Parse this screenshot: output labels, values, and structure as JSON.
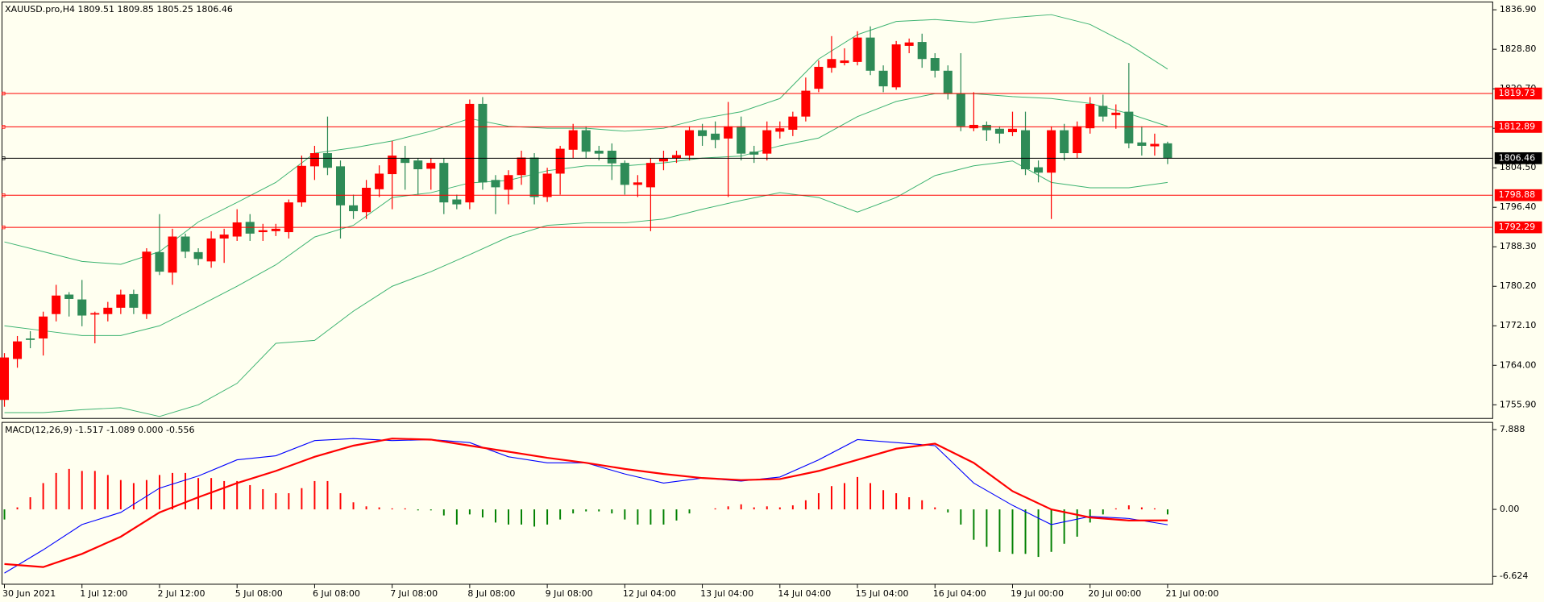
{
  "chart_data": [
    {
      "type": "candlestick",
      "title": "XAUUSD.pro,H4  1809.51 1809.85 1805.25 1806.46",
      "categories": [
        "30 Jun 2021",
        null,
        null,
        null,
        null,
        null,
        "1 Jul 12:00",
        null,
        null,
        null,
        null,
        null,
        "2 Jul 12:00",
        null,
        null,
        null,
        null,
        null,
        "5 Jul 08:00",
        null,
        null,
        null,
        null,
        null,
        "6 Jul 08:00",
        null,
        null,
        null,
        null,
        null,
        "7 Jul 08:00",
        null,
        null,
        null,
        null,
        null,
        "8 Jul 08:00",
        null,
        null,
        null,
        null,
        null,
        "9 Jul 08:00",
        null,
        null,
        null,
        null,
        null,
        "12 Jul 04:00",
        null,
        null,
        null,
        null,
        null,
        "13 Jul 04:00",
        null,
        null,
        null,
        null,
        null,
        "14 Jul 04:00",
        null,
        null,
        null,
        null,
        null,
        "15 Jul 04:00",
        null,
        null,
        null,
        null,
        null,
        "16 Jul 04:00",
        null,
        null,
        null,
        null,
        null,
        "19 Jul 00:00",
        null,
        null,
        null,
        null,
        null,
        "20 Jul 00:00",
        null,
        null,
        null,
        null,
        null,
        "21 Jul 00:00"
      ],
      "open": [
        1756.9,
        1765.3,
        1769.5,
        1769.5,
        1774.5,
        1778.5,
        1777.5,
        1774.4,
        1774.5,
        1775.8,
        1778.6,
        1774.5,
        1787.2,
        1783,
        1790.4,
        1787.2,
        1785.3,
        1790,
        1790.4,
        1793.4,
        1791.3,
        1791.5,
        1791.3,
        1797.4,
        1804.8,
        1807.5,
        1804.8,
        1796.8,
        1795.4,
        1800.1,
        1803.2,
        1806.5,
        1806,
        1804.3,
        1805.5,
        1798,
        1797.4,
        1817.6,
        1802,
        1800,
        1803,
        1806.6,
        1798.5,
        1803.3,
        1808.2,
        1812.2,
        1808,
        1808,
        1805.5,
        1801,
        1800.5,
        1805.8,
        1806.5,
        1807,
        1812.2,
        1811.5,
        1810.5,
        1813,
        1807.8,
        1807.4,
        1811.9,
        1812.3,
        1815,
        1820.7,
        1825,
        1826,
        1826.2,
        1831.2,
        1824.4,
        1821,
        1829.5,
        1830.3,
        1827,
        1824.4,
        1819.7,
        1812.6,
        1813.3,
        1812.5,
        1811.8,
        1812.2,
        1804.6,
        1803.5,
        1812.2,
        1807.5,
        1812.6,
        1817.2,
        1815.3,
        1816,
        1809.7,
        1808.9,
        1809.51
      ],
      "high": [
        1766.5,
        1770,
        1771,
        1775,
        1780.5,
        1779,
        1781.5,
        1775,
        1777,
        1779.5,
        1779.5,
        1788,
        1795,
        1792,
        1791,
        1788,
        1791.5,
        1792,
        1796,
        1795,
        1793,
        1793,
        1798,
        1807,
        1809,
        1815,
        1806,
        1799,
        1802,
        1805,
        1810,
        1809,
        1806.5,
        1806.5,
        1806.5,
        1799,
        1818.5,
        1819,
        1803,
        1804,
        1808,
        1807.5,
        1804.5,
        1809,
        1813.5,
        1813,
        1809,
        1809.5,
        1806,
        1803,
        1806.5,
        1808,
        1808,
        1813,
        1813.5,
        1814,
        1818,
        1815,
        1809,
        1814,
        1814,
        1816,
        1823,
        1826.5,
        1831.5,
        1829,
        1832.5,
        1833.5,
        1825.5,
        1830.5,
        1831,
        1832,
        1828,
        1825.5,
        1828,
        1820,
        1814,
        1813,
        1816,
        1816,
        1806,
        1813,
        1813.5,
        1814,
        1819,
        1819.5,
        1817.5,
        1826,
        1813,
        1811.5,
        1809.85
      ],
      "low": [
        1755.5,
        1763.5,
        1767.5,
        1766,
        1773,
        1774,
        1772,
        1768.5,
        1773,
        1774.5,
        1774.5,
        1773.5,
        1782.5,
        1780.5,
        1786,
        1784.5,
        1784,
        1785,
        1789.5,
        1789.5,
        1789.5,
        1790.5,
        1790,
        1796.5,
        1802,
        1803,
        1790,
        1794,
        1794,
        1798.5,
        1796,
        1800,
        1799,
        1800,
        1795,
        1796,
        1796,
        1800,
        1795,
        1797,
        1801,
        1797,
        1797.5,
        1799,
        1806.5,
        1806.5,
        1806,
        1802,
        1799,
        1798.5,
        1791.5,
        1804,
        1805.5,
        1806,
        1809,
        1808.5,
        1798.5,
        1806,
        1805.5,
        1806,
        1810.5,
        1811,
        1814,
        1820,
        1824,
        1825.5,
        1825.5,
        1823.5,
        1820,
        1820.5,
        1828,
        1825,
        1823,
        1818.5,
        1812,
        1812,
        1810,
        1809.5,
        1811,
        1803,
        1801.5,
        1794,
        1806,
        1806.5,
        1811.5,
        1814,
        1812.5,
        1808.5,
        1807,
        1807,
        1805.25
      ],
      "close": [
        1765.6,
        1768.9,
        1769.2,
        1774,
        1778.3,
        1777.6,
        1774.2,
        1774.7,
        1775.8,
        1778.5,
        1775.8,
        1787.3,
        1783.2,
        1790.4,
        1787.3,
        1785.8,
        1790,
        1790.8,
        1793.3,
        1791,
        1791.7,
        1792,
        1797.4,
        1804.9,
        1807.5,
        1804.5,
        1796.8,
        1795.6,
        1800.4,
        1803.3,
        1807,
        1805.5,
        1804.2,
        1805.5,
        1797.4,
        1797,
        1817.6,
        1801.5,
        1800.5,
        1803,
        1806.6,
        1798.5,
        1803.3,
        1808.4,
        1812.2,
        1807.8,
        1807.4,
        1805.4,
        1801,
        1801.5,
        1805.5,
        1806.4,
        1807.1,
        1812.2,
        1811,
        1810.2,
        1813,
        1807.4,
        1807.2,
        1812.2,
        1812.6,
        1815,
        1820.3,
        1825.2,
        1826.8,
        1826.5,
        1831.2,
        1824.4,
        1821.2,
        1829.8,
        1830.2,
        1826.8,
        1824.4,
        1819.7,
        1813,
        1813.3,
        1812.2,
        1811.5,
        1812.5,
        1804.2,
        1803.5,
        1812.2,
        1807.5,
        1813,
        1817.6,
        1815,
        1815.8,
        1809.5,
        1809,
        1809.4,
        1806.46
      ],
      "up_color": "#ff0000",
      "down_color": "#2e8b57",
      "overlay_x": [
        0,
        3,
        6,
        9,
        12,
        15,
        18,
        21,
        24,
        27,
        30,
        33,
        36,
        39,
        42,
        45,
        48,
        51,
        54,
        57,
        60,
        63,
        66,
        69,
        72,
        75,
        78,
        81,
        84,
        87,
        90
      ],
      "overlays": [
        {
          "color": "#3cb371",
          "values": [
            1789.3,
            1787.3,
            1785.3,
            1784.7,
            1787.3,
            1793.4,
            1797.4,
            1801.5,
            1807.5,
            1808.6,
            1810,
            1812,
            1814.6,
            1813,
            1812.6,
            1812.6,
            1812,
            1812.6,
            1814.6,
            1816,
            1818.7,
            1826.8,
            1831.8,
            1834.5,
            1834.9,
            1834.3,
            1835.3,
            1835.9,
            1833.9,
            1829.8,
            1824.75
          ]
        },
        {
          "color": "#3cb371",
          "values": [
            1772.1,
            1771.1,
            1770.1,
            1770.1,
            1772.1,
            1776.1,
            1780.2,
            1784.6,
            1790.3,
            1792.7,
            1798.4,
            1799.4,
            1801.4,
            1801.9,
            1803.9,
            1804.9,
            1804.9,
            1805.5,
            1806.5,
            1806.9,
            1809,
            1810.6,
            1815,
            1818.1,
            1819.7,
            1819.7,
            1819.1,
            1818.7,
            1817.7,
            1815.6,
            1813
          ]
        },
        {
          "color": "#3cb371",
          "values": [
            1754.3,
            1754.3,
            1754.9,
            1755.3,
            1753.5,
            1755.9,
            1760.3,
            1768.5,
            1769.1,
            1775.1,
            1780.2,
            1783.2,
            1786.7,
            1790.3,
            1792.7,
            1793.2,
            1793.2,
            1794,
            1796,
            1797.8,
            1799.4,
            1798.4,
            1795.4,
            1798.4,
            1802.9,
            1804.9,
            1805.9,
            1801.5,
            1800.4,
            1800.4,
            1801.5
          ]
        }
      ],
      "ylim": [
        1753.1,
        1838.5
      ],
      "yticks": [
        {
          "value": 1836.9,
          "label": "1836.90"
        },
        {
          "value": 1828.8,
          "label": "1828.80"
        },
        {
          "value": 1820.7,
          "label": "1820.70"
        },
        {
          "value": 1812.6,
          "label": "1812.60"
        },
        {
          "value": 1804.5,
          "label": "1804.50"
        },
        {
          "value": 1796.4,
          "label": "1796.40"
        },
        {
          "value": 1788.3,
          "label": "1788.30"
        },
        {
          "value": 1780.2,
          "label": "1780.20"
        },
        {
          "value": 1772.1,
          "label": "1772.10"
        },
        {
          "value": 1764,
          "label": "1764.00"
        },
        {
          "value": 1755.9,
          "label": "1755.90"
        }
      ],
      "levels": [
        1819.73,
        1812.89,
        1798.88,
        1792.29
      ],
      "level_color": "#ff0000",
      "bid": 1806.46,
      "bid_color": "#000000"
    },
    {
      "type": "macd",
      "title": "MACD(12,26,9) -1.517 -1.089 0.000 -0.556",
      "histogram": [
        -1.0,
        0.2,
        1.2,
        2.6,
        3.6,
        4.0,
        3.8,
        3.8,
        3.4,
        2.9,
        2.6,
        2.9,
        3.4,
        3.6,
        3.6,
        3.1,
        3.1,
        2.8,
        2.8,
        2.4,
        2.0,
        1.6,
        1.6,
        2.1,
        2.8,
        2.8,
        1.6,
        0.7,
        0.3,
        0.2,
        0.1,
        0.1,
        -0.1,
        -0.1,
        -0.6,
        -1.5,
        -0.5,
        -0.8,
        -1.3,
        -1.5,
        -1.5,
        -1.7,
        -1.5,
        -1.0,
        -0.4,
        -0.2,
        -0.2,
        -0.4,
        -1.0,
        -1.5,
        -1.5,
        -1.5,
        -1.1,
        -0.4,
        0,
        0.1,
        0.3,
        0.5,
        0.2,
        0.3,
        0.2,
        0.4,
        0.9,
        1.6,
        2.3,
        2.6,
        3.2,
        2.6,
        1.9,
        1.6,
        1.2,
        0.9,
        0.2,
        -0.3,
        -1.5,
        -3.0,
        -3.7,
        -4.2,
        -4.4,
        -4.4,
        -4.7,
        -4.2,
        -3.4,
        -2.7,
        -1.3,
        -0.5,
        0.1,
        0.4,
        0.2,
        0.1,
        -0.5
      ],
      "up_color": "#ff0000",
      "down_color": "#008000",
      "x": [
        0,
        3,
        6,
        9,
        12,
        15,
        18,
        21,
        24,
        27,
        30,
        33,
        36,
        39,
        42,
        45,
        48,
        51,
        54,
        57,
        60,
        63,
        66,
        69,
        72,
        75,
        78,
        81,
        84,
        87,
        90
      ],
      "series": [
        {
          "color": "#0000ff",
          "values": [
            -6.3,
            -4.0,
            -1.5,
            -0.3,
            2.1,
            3.3,
            4.9,
            5.3,
            6.8,
            7.0,
            6.8,
            6.9,
            6.6,
            5.2,
            4.6,
            4.6,
            3.5,
            2.6,
            3.1,
            2.8,
            3.2,
            4.9,
            6.9,
            6.6,
            6.3,
            2.6,
            0.4,
            -1.5,
            -0.7,
            -0.9,
            -1.517
          ]
        },
        {
          "color": "#ff0000",
          "values": [
            -5.4,
            -5.7,
            -4.4,
            -2.7,
            -0.3,
            1.2,
            2.6,
            3.8,
            5.2,
            6.3,
            7.0,
            6.9,
            6.3,
            5.7,
            5.1,
            4.6,
            4.0,
            3.5,
            3.1,
            2.9,
            3.0,
            3.8,
            4.9,
            6.0,
            6.5,
            4.6,
            1.8,
            0.0,
            -0.8,
            -1.1,
            -1.089
          ]
        }
      ],
      "ylim": [
        -7.4,
        8.6
      ],
      "yticks": [
        7.888,
        {
          "value": 0,
          "label": "0.00"
        },
        -6.624
      ]
    }
  ]
}
